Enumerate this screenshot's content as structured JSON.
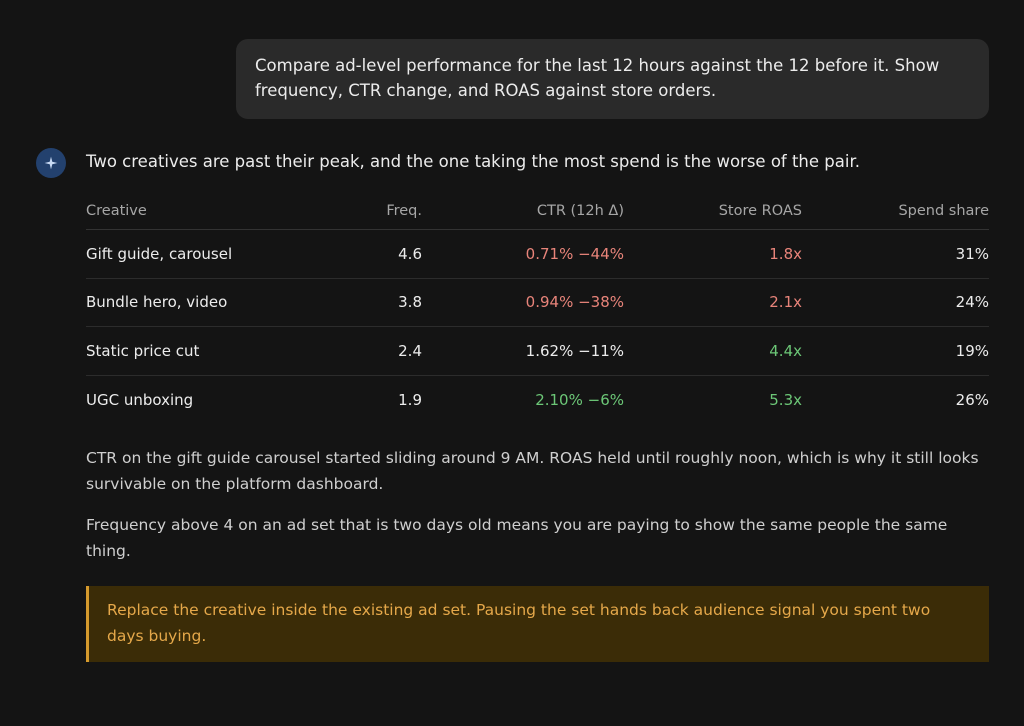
{
  "user_message": "Compare ad-level performance for the last 12 hours against the 12 before it. Show frequency, CTR change, and ROAS against store orders.",
  "assistant": {
    "avatar_icon": "sparkle-icon",
    "lead": "Two creatives are past their peak, and the one taking the most spend is the worse of the pair.",
    "table": {
      "headers": [
        "Creative",
        "Freq.",
        "CTR (12h Δ)",
        "Store ROAS",
        "Spend share"
      ],
      "rows": [
        {
          "creative": "Gift guide, carousel",
          "freq": "4.6",
          "ctr": "0.71% −44%",
          "roas": "1.8x",
          "spend": "31%"
        },
        {
          "creative": "Bundle hero, video",
          "freq": "3.8",
          "ctr": "0.94% −38%",
          "roas": "2.1x",
          "spend": "24%"
        },
        {
          "creative": "Static price cut",
          "freq": "2.4",
          "ctr": "1.62% −11%",
          "roas": "4.4x",
          "spend": "19%"
        },
        {
          "creative": "UGC unboxing",
          "freq": "1.9",
          "ctr": "2.10% −6%",
          "roas": "5.3x",
          "spend": "26%"
        }
      ]
    },
    "paragraphs": [
      "CTR on the gift guide carousel started sliding around 9 AM. ROAS held until roughly noon, which is why it still looks survivable on the platform dashboard.",
      "Frequency above 4 on an ad set that is two days old means you are paying to show the same people the same thing."
    ],
    "callout": "Replace the creative inside the existing ad set. Pausing the set hands back audience signal you spent two days buying."
  },
  "colors": {
    "negative": "#e8847a",
    "positive": "#6cc777",
    "callout_text": "#e5a84a",
    "callout_bg": "#3b2c07"
  }
}
